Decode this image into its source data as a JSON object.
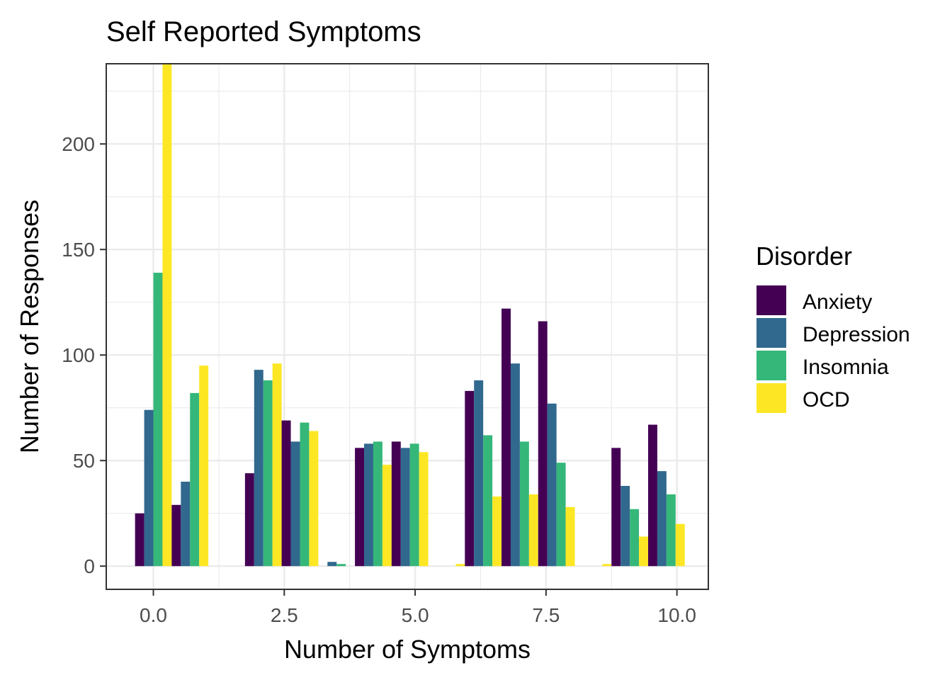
{
  "chart_data": {
    "type": "bar",
    "title": "Self Reported Symptoms",
    "xlabel": "Number of Symptoms",
    "ylabel": "Number of Responses",
    "xlim": [
      -0.9,
      10.6
    ],
    "ylim": [
      -11,
      238
    ],
    "x_ticks": [
      0.0,
      2.5,
      5.0,
      7.5,
      10.0
    ],
    "x_tick_labels": [
      "0.0",
      "2.5",
      "5.0",
      "7.5",
      "10.0"
    ],
    "y_ticks": [
      0,
      50,
      100,
      150,
      200
    ],
    "y_tick_labels": [
      "0",
      "50",
      "100",
      "150",
      "200"
    ],
    "grid": true,
    "legend": {
      "title": "Disorder",
      "placement": "right",
      "entries": [
        "Anxiety",
        "Depression",
        "Insomnia",
        "OCD"
      ]
    },
    "colors": [
      "#440154",
      "#31688E",
      "#35B779",
      "#FDE725"
    ],
    "x": [
      0,
      0.7,
      2.1,
      2.8,
      3.5,
      4.2,
      4.9,
      5.6,
      6.3,
      7.0,
      7.7,
      8.4,
      9.1,
      9.8
    ],
    "series": [
      {
        "name": "Anxiety",
        "values": [
          25,
          29,
          44,
          69,
          0,
          56,
          59,
          0,
          83,
          122,
          116,
          0,
          56,
          67
        ]
      },
      {
        "name": "Depression",
        "values": [
          74,
          40,
          93,
          59,
          2,
          58,
          56,
          0,
          88,
          96,
          77,
          0,
          38,
          45
        ]
      },
      {
        "name": "Insomnia",
        "values": [
          139,
          82,
          88,
          68,
          1,
          59,
          58,
          0,
          62,
          59,
          49,
          0,
          27,
          34
        ]
      },
      {
        "name": "OCD",
        "values": [
          238,
          95,
          96,
          64,
          0,
          48,
          54,
          1,
          33,
          34,
          28,
          1,
          14,
          20
        ]
      }
    ]
  }
}
